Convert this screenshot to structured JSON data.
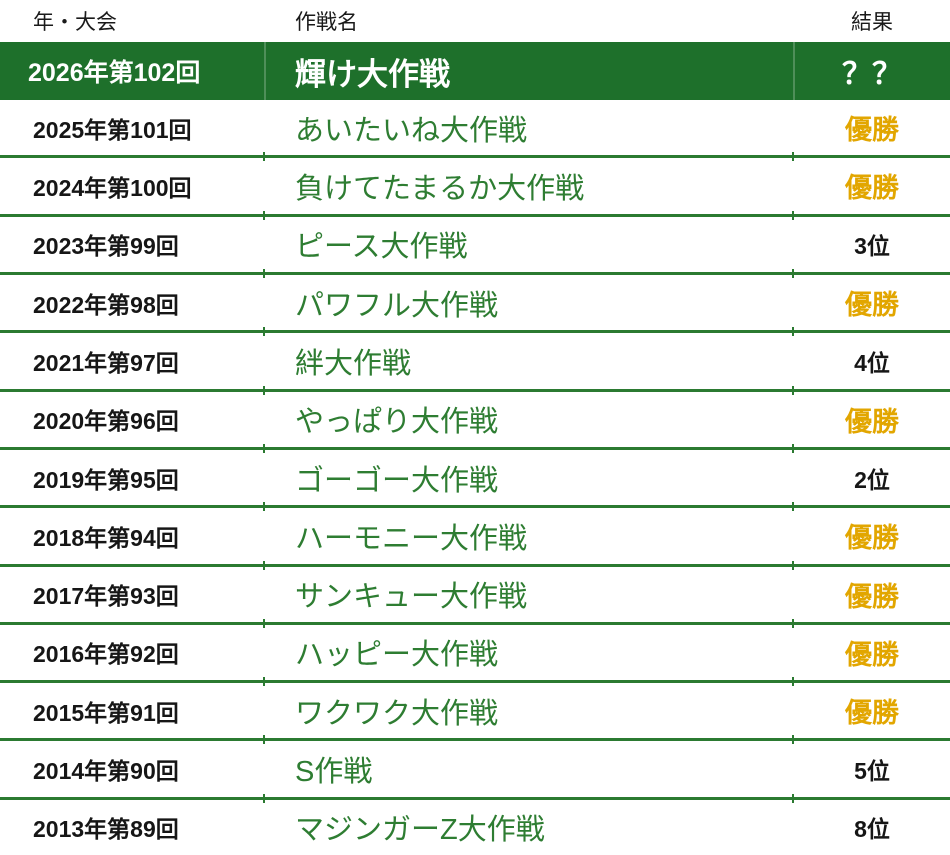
{
  "colors": {
    "green_bg": "#1E702B",
    "green_text": "#2E7D32",
    "gold": "#E2A600",
    "line": "#2B7A31",
    "ink": "#161616"
  },
  "header": {
    "col_year": "年・大会",
    "col_operation": "作戦名",
    "col_result": "結果"
  },
  "highlight": {
    "year": "2026年第102回",
    "operation": "輝け大作戦",
    "result": "？？"
  },
  "rows": [
    {
      "year": "2025年第101回",
      "operation": "あいたいね大作戦",
      "result": "優勝",
      "result_class": "gold"
    },
    {
      "year": "2024年第100回",
      "operation": "負けてたまるか大作戦",
      "result": "優勝",
      "result_class": "gold"
    },
    {
      "year": "2023年第99回",
      "operation": "ピース大作戦",
      "result": "3位",
      "result_class": "rank"
    },
    {
      "year": "2022年第98回",
      "operation": "パワフル大作戦",
      "result": "優勝",
      "result_class": "gold"
    },
    {
      "year": "2021年第97回",
      "operation": "絆大作戦",
      "result": "4位",
      "result_class": "rank"
    },
    {
      "year": "2020年第96回",
      "operation": "やっぱり大作戦",
      "result": "優勝",
      "result_class": "gold"
    },
    {
      "year": "2019年第95回",
      "operation": "ゴーゴー大作戦",
      "result": "2位",
      "result_class": "rank"
    },
    {
      "year": "2018年第94回",
      "operation": "ハーモニー大作戦",
      "result": "優勝",
      "result_class": "gold"
    },
    {
      "year": "2017年第93回",
      "operation": "サンキュー大作戦",
      "result": "優勝",
      "result_class": "gold"
    },
    {
      "year": "2016年第92回",
      "operation": "ハッピー大作戦",
      "result": "優勝",
      "result_class": "gold"
    },
    {
      "year": "2015年第91回",
      "operation": "ワクワク大作戦",
      "result": "優勝",
      "result_class": "gold"
    },
    {
      "year": "2014年第90回",
      "operation": "S作戦",
      "result": "5位",
      "result_class": "rank"
    },
    {
      "year": "2013年第89回",
      "operation": "マジンガーZ大作戦",
      "result": "8位",
      "result_class": "rank"
    }
  ]
}
